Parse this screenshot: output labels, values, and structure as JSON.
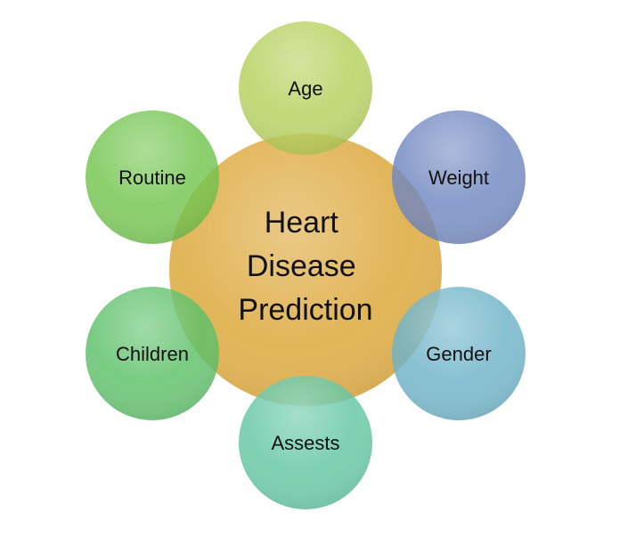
{
  "center": {
    "lines": [
      "Heart",
      "Disease",
      "Prediction"
    ],
    "color": "#E0B150"
  },
  "satellites": [
    {
      "label": "Age",
      "color": "#B5D05A",
      "icon": "circle"
    },
    {
      "label": "Weight",
      "color": "#6F86C0",
      "icon": "circle"
    },
    {
      "label": "Gender",
      "color": "#6CB2C8",
      "icon": "circle"
    },
    {
      "label": "Assests",
      "color": "#62C6A4",
      "icon": "circle"
    },
    {
      "label": "Children",
      "color": "#5CC068",
      "icon": "circle"
    },
    {
      "label": "Routine",
      "color": "#72C44D",
      "icon": "circle"
    }
  ]
}
